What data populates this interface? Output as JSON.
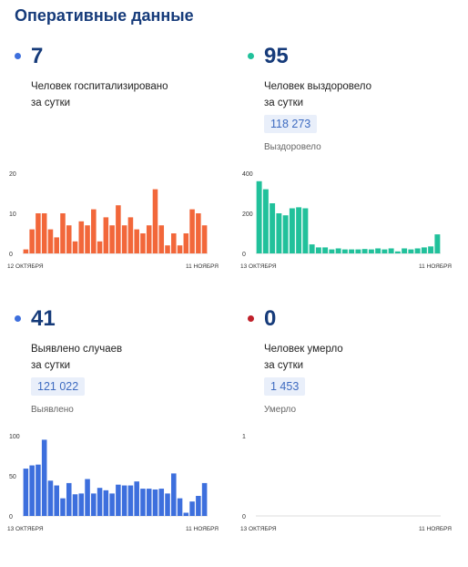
{
  "page": {
    "title": "Оперативные данные"
  },
  "colors": {
    "title": "#163b7a",
    "blue": "#3d6fdd",
    "teal": "#21c19b",
    "orange": "#f2673a",
    "red": "#c0202a"
  },
  "panels": [
    {
      "value": "7",
      "label_line1": "Человек госпитализировано",
      "label_line2": "за сутки",
      "total": "",
      "total_caption": "",
      "dot_color": "#3d6fdd"
    },
    {
      "value": "95",
      "label_line1": "Человек выздоровело",
      "label_line2": "за сутки",
      "total": "118 273",
      "total_caption": "Выздоровело",
      "dot_color": "#21c19b"
    },
    {
      "value": "41",
      "label_line1": "Выявлено случаев",
      "label_line2": "за сутки",
      "total": "121 022",
      "total_caption": "Выявлено",
      "dot_color": "#3d6fdd"
    },
    {
      "value": "0",
      "label_line1": "Человек умерло",
      "label_line2": "за сутки",
      "total": "1 453",
      "total_caption": "Умерло",
      "dot_color": "#c0202a"
    }
  ],
  "chart_data": [
    {
      "type": "bar",
      "color": "#f2673a",
      "x_start_label": "12 ОКТЯБРЯ",
      "x_end_label": "11 НОЯБРЯ",
      "ylim": [
        0,
        20
      ],
      "yticks": [
        0,
        10,
        20
      ],
      "values": [
        1,
        6,
        10,
        10,
        6,
        4,
        10,
        7,
        3,
        8,
        7,
        11,
        3,
        9,
        7,
        12,
        7,
        9,
        6,
        5,
        7,
        16,
        7,
        2,
        5,
        2,
        5,
        11,
        10,
        7
      ]
    },
    {
      "type": "bar",
      "color": "#21c19b",
      "x_start_label": "13 ОКТЯБРЯ",
      "x_end_label": "11 НОЯБРЯ",
      "ylim": [
        0,
        400
      ],
      "yticks": [
        0,
        200,
        400
      ],
      "values": [
        360,
        320,
        250,
        200,
        190,
        225,
        230,
        225,
        45,
        30,
        30,
        20,
        25,
        20,
        20,
        20,
        22,
        20,
        25,
        20,
        25,
        10,
        25,
        20,
        25,
        30,
        35,
        95
      ]
    },
    {
      "type": "bar",
      "color": "#3d6fdd",
      "x_start_label": "13 ОКТЯБРЯ",
      "x_end_label": "11 НОЯБРЯ",
      "ylim": [
        0,
        100
      ],
      "yticks": [
        0,
        50,
        100
      ],
      "values": [
        59,
        63,
        64,
        95,
        44,
        38,
        22,
        41,
        27,
        28,
        46,
        28,
        35,
        32,
        28,
        39,
        38,
        38,
        43,
        34,
        34,
        33,
        34,
        28,
        53,
        22,
        4,
        18,
        25,
        41
      ]
    },
    {
      "type": "bar",
      "color": "#c0202a",
      "x_start_label": "13 ОКТЯБРЯ",
      "x_end_label": "11 НОЯБРЯ",
      "ylim": [
        0,
        1
      ],
      "yticks": [
        0,
        1
      ],
      "values": []
    }
  ]
}
